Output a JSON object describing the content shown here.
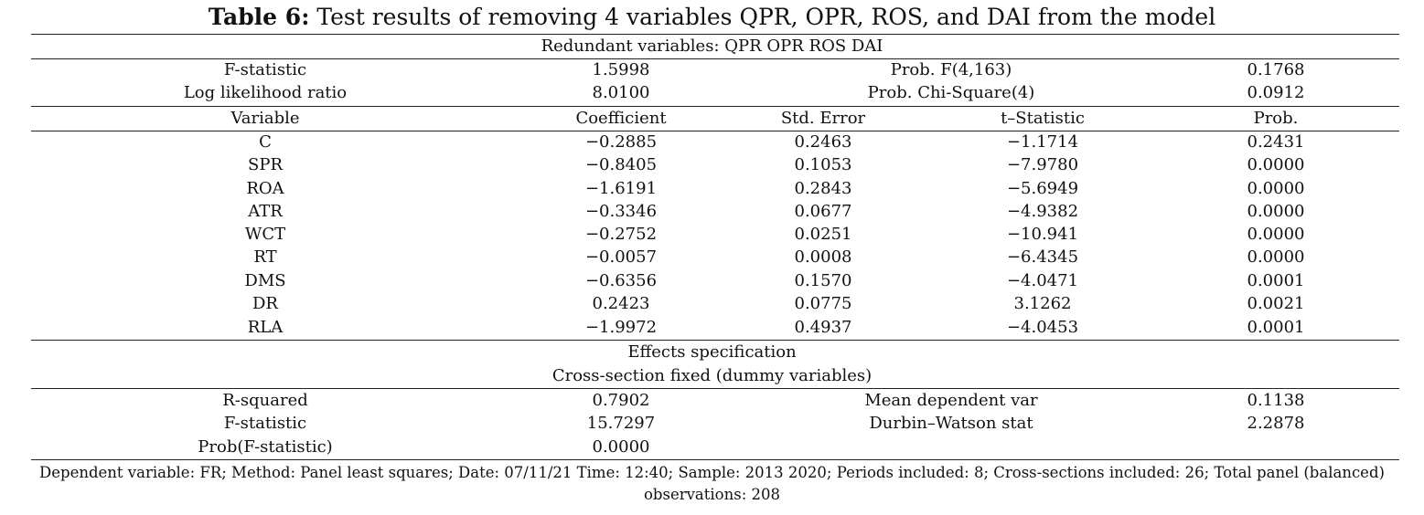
{
  "title": {
    "label": "Table 6:",
    "text": "Test results of removing 4 variables QPR, OPR, ROS, and DAI from the model"
  },
  "redundant_header": "Redundant variables: QPR OPR ROS DAI",
  "test_stats": [
    {
      "name": "F-statistic",
      "value": "1.5998",
      "prob_label": "Prob. F(4,163)",
      "prob_value": "0.1768"
    },
    {
      "name": "Log likelihood ratio",
      "value": "8.0100",
      "prob_label": "Prob. Chi-Square(4)",
      "prob_value": "0.0912"
    }
  ],
  "columns": [
    "Variable",
    "Coefficient",
    "Std. Error",
    "t–Statistic",
    "Prob."
  ],
  "rows": [
    {
      "variable": "C",
      "coefficient": "−0.2885",
      "std_error": "0.2463",
      "t_stat": "−1.1714",
      "prob": "0.2431"
    },
    {
      "variable": "SPR",
      "coefficient": "−0.8405",
      "std_error": "0.1053",
      "t_stat": "−7.9780",
      "prob": "0.0000"
    },
    {
      "variable": "ROA",
      "coefficient": "−1.6191",
      "std_error": "0.2843",
      "t_stat": "−5.6949",
      "prob": "0.0000"
    },
    {
      "variable": "ATR",
      "coefficient": "−0.3346",
      "std_error": "0.0677",
      "t_stat": "−4.9382",
      "prob": "0.0000"
    },
    {
      "variable": "WCT",
      "coefficient": "−0.2752",
      "std_error": "0.0251",
      "t_stat": "−10.941",
      "prob": "0.0000"
    },
    {
      "variable": "RT",
      "coefficient": "−0.0057",
      "std_error": "0.0008",
      "t_stat": "−6.4345",
      "prob": "0.0000"
    },
    {
      "variable": "DMS",
      "coefficient": "−0.6356",
      "std_error": "0.1570",
      "t_stat": "−4.0471",
      "prob": "0.0001"
    },
    {
      "variable": "DR",
      "coefficient": "0.2423",
      "std_error": "0.0775",
      "t_stat": "3.1262",
      "prob": "0.0021"
    },
    {
      "variable": "RLA",
      "coefficient": "−1.9972",
      "std_error": "0.4937",
      "t_stat": "−4.0453",
      "prob": "0.0001"
    }
  ],
  "effects": {
    "heading": "Effects specification",
    "subheading": "Cross-section fixed (dummy variables)"
  },
  "summary": [
    {
      "name": "R-squared",
      "value": "0.7902",
      "name2": "Mean dependent var",
      "value2": "0.1138"
    },
    {
      "name": "F-statistic",
      "value": "15.7297",
      "name2": "Durbin–Watson stat",
      "value2": "2.2878"
    },
    {
      "name": "Prob(F-statistic)",
      "value": "0.0000",
      "name2": "",
      "value2": ""
    }
  ],
  "footnote": "Dependent variable: FR; Method: Panel least squares; Date: 07/11/21 Time: 12:40; Sample: 2013 2020; Periods included: 8; Cross-sections included: 26; Total panel (balanced) observations: 208"
}
